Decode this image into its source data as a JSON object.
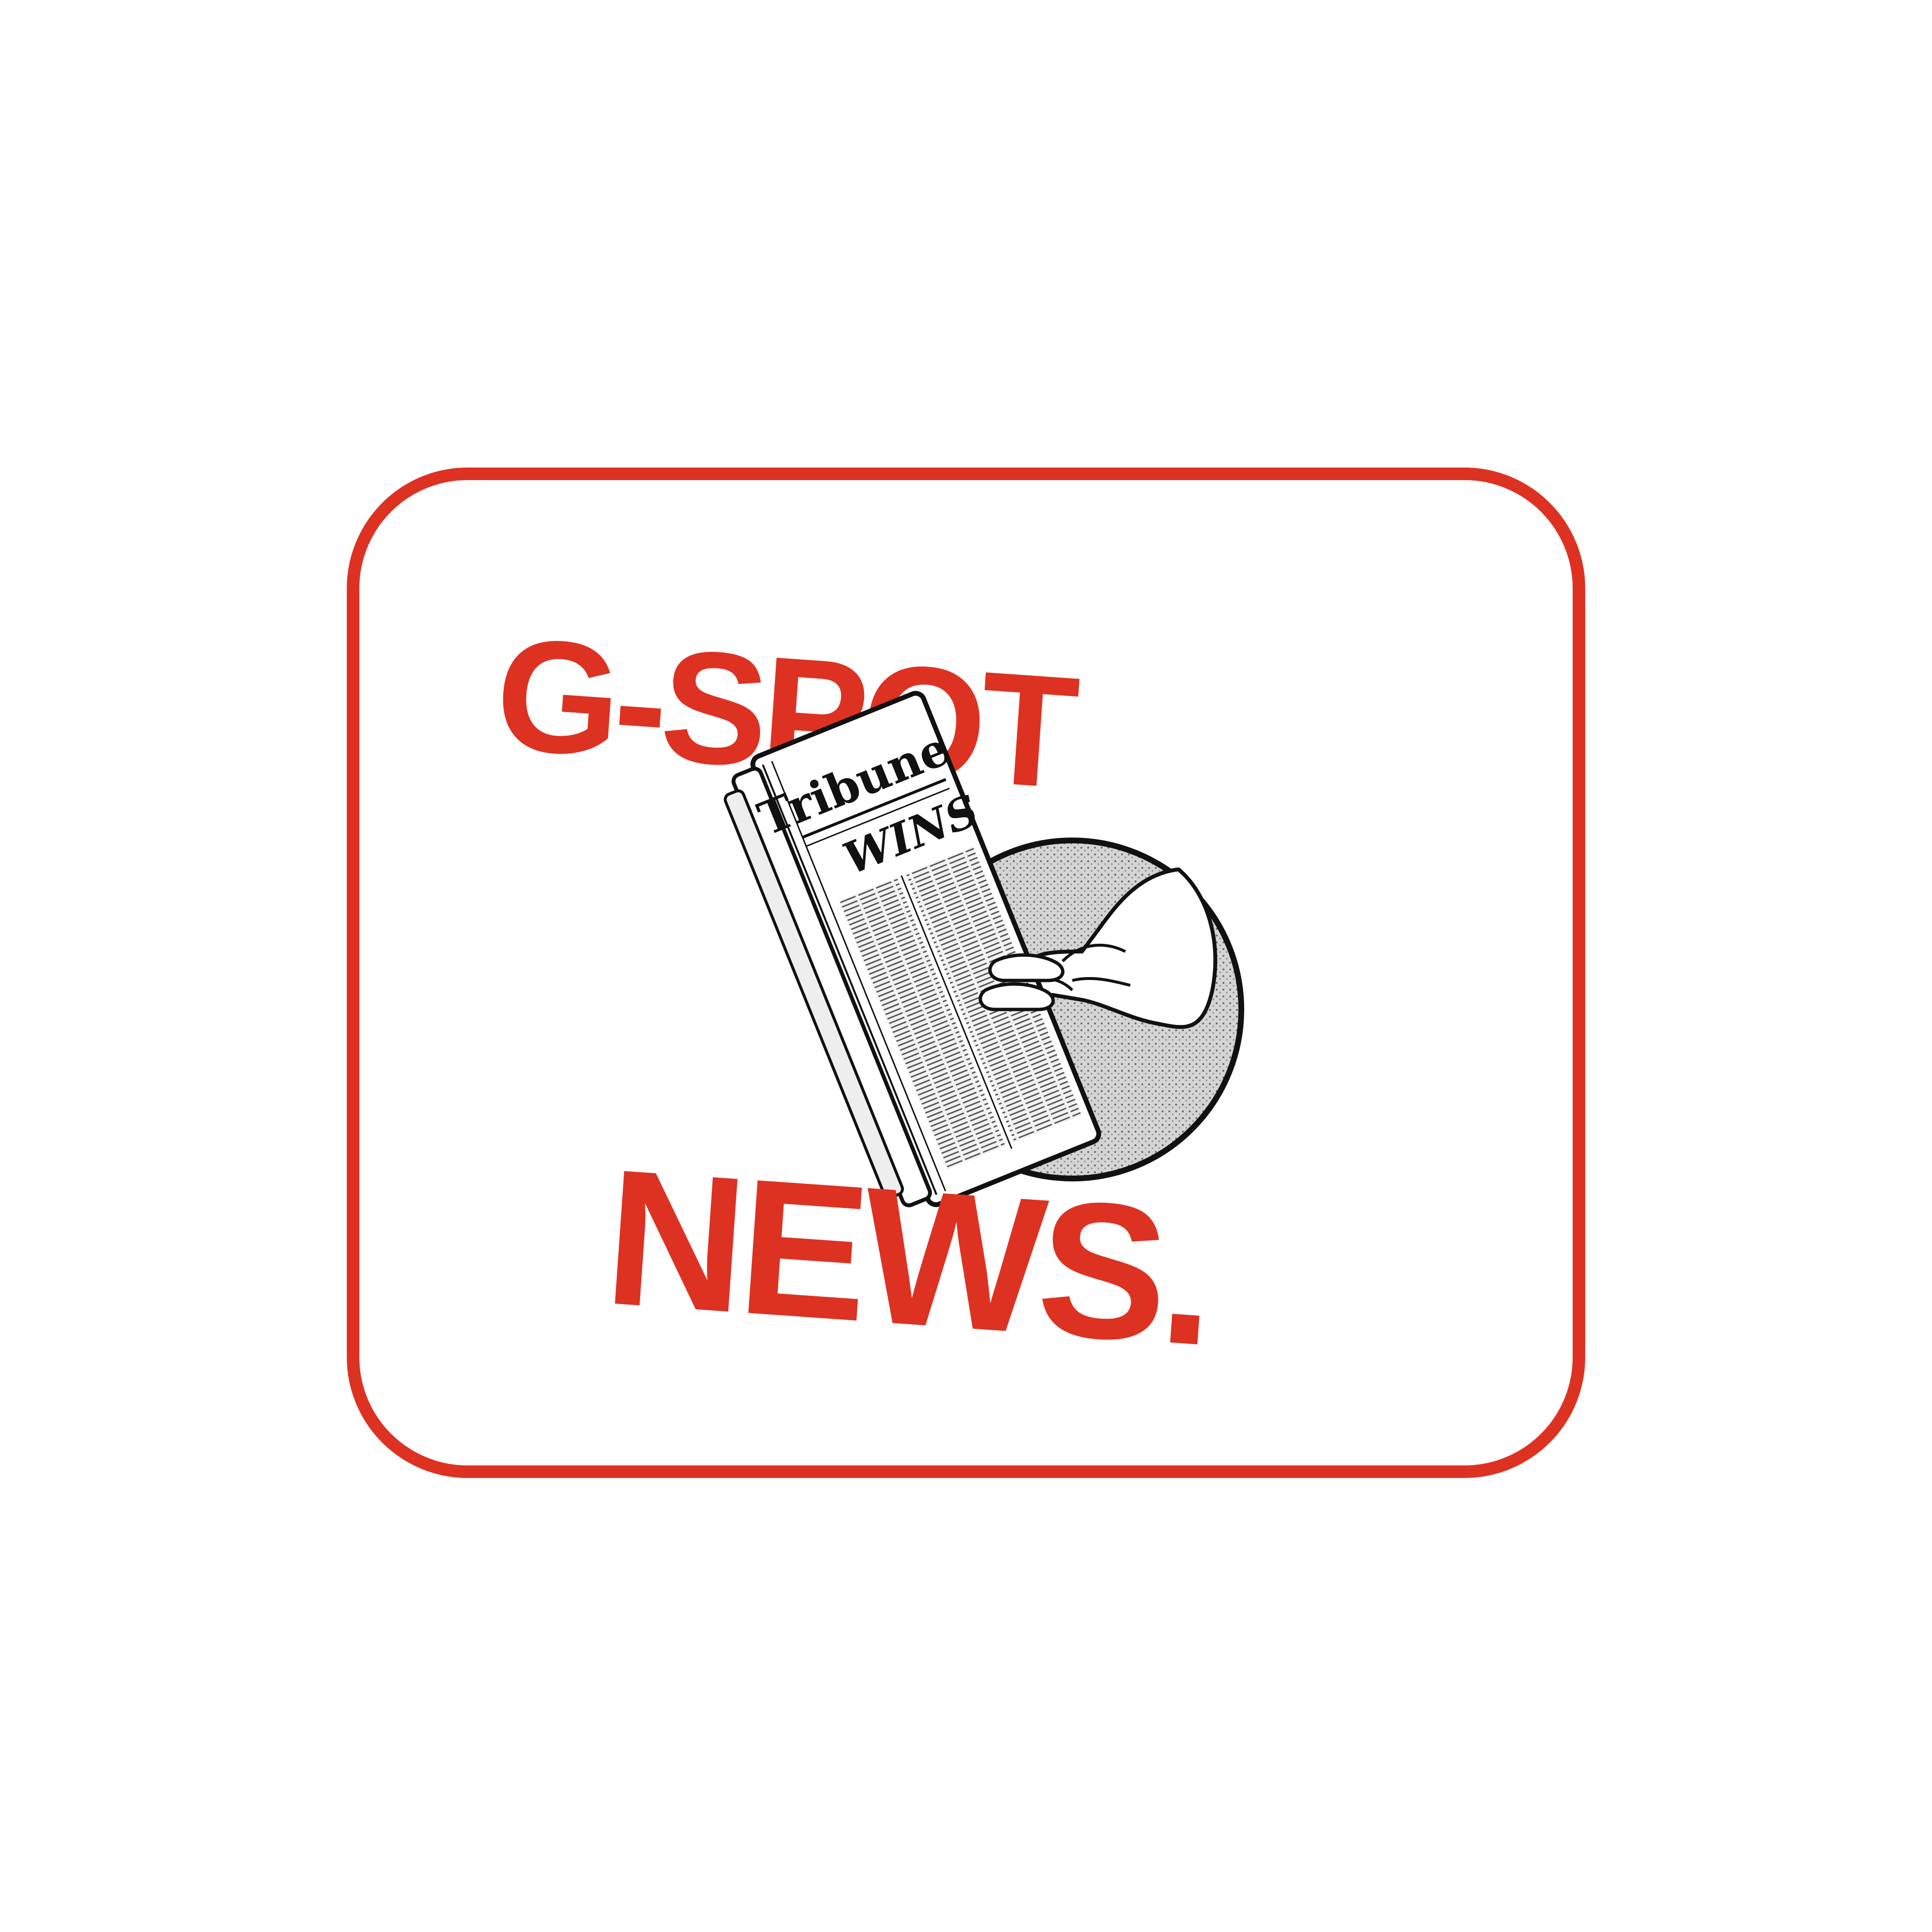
{
  "logo": {
    "line1": "G-SPOT",
    "line2": "NEWS.",
    "accent_color": "#dd3222",
    "background_color": "#ffffff",
    "illustration": "hand-holding-newspaper-icon",
    "newspaper_masthead": "Tribune",
    "newspaper_headline": "WINS"
  }
}
